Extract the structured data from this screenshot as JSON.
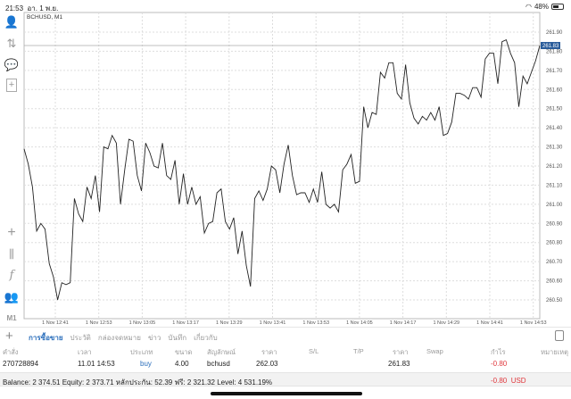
{
  "status": {
    "time": "21:53",
    "date": "อา. 1 พ.ย.",
    "battery": "48%",
    "battery_level": 0.48
  },
  "sidebar": {
    "items": [
      "accounts-icon",
      "trade-icon",
      "chat-icon",
      "new-order-icon"
    ],
    "tools": [
      "crosshair-icon",
      "candles-icon",
      "indicators-icon",
      "objects-icon"
    ],
    "timeframe": "M1"
  },
  "chart_data": {
    "type": "line",
    "title": "BCHUSD, M1",
    "current_price": "261.83",
    "ylim": [
      260.44,
      262.0
    ],
    "yticks": [
      "261.90",
      "261.80",
      "261.70",
      "261.60",
      "261.50",
      "261.40",
      "261.30",
      "261.20",
      "261.10",
      "261.00",
      "260.90",
      "260.80",
      "260.70",
      "260.60",
      "260.50"
    ],
    "xticks": [
      "1 Nov 12:41",
      "1 Nov 12:53",
      "1 Nov 13:05",
      "1 Nov 13:17",
      "1 Nov 13:29",
      "1 Nov 13:41",
      "1 Nov 13:53",
      "1 Nov 14:05",
      "1 Nov 14:17",
      "1 Nov 14:29",
      "1 Nov 14:41",
      "1 Nov 14:53"
    ],
    "grid": true,
    "values": [
      261.29,
      261.21,
      261.09,
      260.86,
      260.9,
      260.87,
      260.69,
      260.62,
      260.5,
      260.59,
      260.58,
      260.59,
      261.03,
      260.95,
      260.91,
      261.09,
      261.03,
      261.15,
      260.96,
      261.3,
      261.29,
      261.36,
      261.32,
      261.0,
      261.18,
      261.34,
      261.33,
      261.15,
      261.07,
      261.32,
      261.27,
      261.2,
      261.19,
      261.32,
      261.15,
      261.13,
      261.23,
      261.0,
      261.16,
      261.0,
      261.09,
      261.0,
      261.04,
      260.85,
      260.9,
      260.91,
      261.06,
      261.08,
      260.91,
      260.87,
      260.93,
      260.74,
      260.86,
      260.68,
      260.57,
      261.03,
      261.07,
      261.02,
      261.08,
      261.2,
      261.18,
      261.06,
      261.21,
      261.31,
      261.15,
      261.05,
      261.06,
      261.06,
      261.01,
      261.08,
      261.01,
      261.17,
      261.0,
      260.98,
      261.0,
      260.96,
      261.18,
      261.21,
      261.26,
      261.11,
      261.12,
      261.51,
      261.4,
      261.48,
      261.47,
      261.69,
      261.66,
      261.74,
      261.74,
      261.58,
      261.55,
      261.73,
      261.53,
      261.45,
      261.42,
      261.46,
      261.44,
      261.48,
      261.44,
      261.51,
      261.36,
      261.37,
      261.43,
      261.58,
      261.58,
      261.57,
      261.55,
      261.61,
      261.61,
      261.56,
      261.76,
      261.79,
      261.79,
      261.63,
      261.85,
      261.86,
      261.79,
      261.74,
      261.51,
      261.67,
      261.63,
      261.69,
      261.75,
      261.83
    ]
  },
  "toolbar": {
    "tabs": [
      "การซื้อขาย",
      "ประวัติ",
      "กล่องจดหมาย",
      "ข่าว",
      "บันทึก",
      "เกี่ยวกับ"
    ],
    "active": 0
  },
  "table": {
    "headers": [
      "คำสั่ง",
      "เวลา",
      "ประเภท",
      "ขนาด",
      "สัญลักษณ์",
      "ราคา",
      "S/L",
      "T/P",
      "ราคา",
      "Swap",
      "กำไร",
      "หมายเหตุ"
    ],
    "row": {
      "order": "270728894",
      "time": "11.01 14:53",
      "type": "buy",
      "volume": "4.00",
      "symbol": "bchusd",
      "open_price": "262.03",
      "sl": "",
      "tp": "",
      "price": "261.83",
      "swap": "",
      "profit": "-0.80",
      "comment": ""
    }
  },
  "balance": {
    "text": "Balance: 2 374.51 Equity: 2 373.71 หลักประกัน: 52.39 ฟรี: 2 321.32 Level: 4 531.19%",
    "total": "-0.80",
    "currency": "USD"
  },
  "colors": {
    "accent": "#2a6ebb",
    "loss": "#e0393e",
    "price_tag": "#2a5c9a"
  }
}
